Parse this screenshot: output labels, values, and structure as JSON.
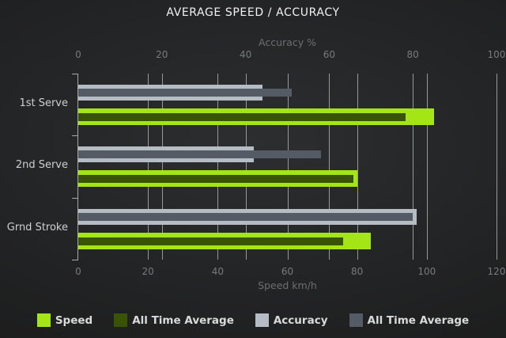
{
  "chart_data": {
    "type": "bar",
    "orientation": "horizontal",
    "title": "AVERAGE SPEED / ACCURACY",
    "categories": [
      "1st Serve",
      "2nd Serve",
      "Grnd Stroke"
    ],
    "axes": {
      "top": {
        "label": "Accuracy %",
        "min": 0,
        "max": 100,
        "ticks": [
          0,
          20,
          40,
          60,
          80,
          100
        ]
      },
      "bottom": {
        "label": "Speed km/h",
        "min": 0,
        "max": 120,
        "ticks": [
          0,
          20,
          40,
          60,
          80,
          100,
          120
        ]
      }
    },
    "series": [
      {
        "name": "Speed",
        "axis": "bottom",
        "role": "current",
        "color": "#a3e515",
        "values": [
          102,
          80,
          84
        ]
      },
      {
        "name": "All Time Average",
        "axis": "bottom",
        "role": "average",
        "color": "#3a5407",
        "values": [
          94,
          79,
          76
        ]
      },
      {
        "name": "Accuracy",
        "axis": "top",
        "role": "current",
        "color": "#b6bcc3",
        "values": [
          44,
          42,
          81
        ]
      },
      {
        "name": "All Time Average",
        "axis": "top",
        "role": "average",
        "color": "#545b65",
        "values": [
          51,
          58,
          80
        ]
      }
    ],
    "legend": [
      "Speed",
      "All Time Average",
      "Accuracy",
      "All Time Average"
    ],
    "legend_position": "bottom",
    "grid": true
  },
  "colors": {
    "gridline": "#989898",
    "axis_line": "#a8a8a8",
    "tick_label": "#7a7a7a",
    "category_label": "#d0d0d0"
  }
}
